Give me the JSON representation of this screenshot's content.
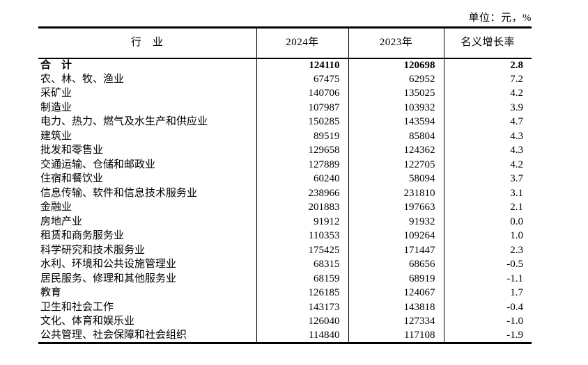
{
  "chart_data": {
    "type": "table",
    "unit_label": "单位：元，%",
    "columns": [
      "行　业",
      "2024年",
      "2023年",
      "名义增长率"
    ],
    "column_keys": [
      "industry",
      "v2024",
      "v2023",
      "growth"
    ],
    "rows": [
      {
        "industry": "合　计",
        "v2024": "124110",
        "v2023": "120698",
        "growth": "2.8",
        "bold": true
      },
      {
        "industry": "农、林、牧、渔业",
        "v2024": "67475",
        "v2023": "62952",
        "growth": "7.2"
      },
      {
        "industry": "采矿业",
        "v2024": "140706",
        "v2023": "135025",
        "growth": "4.2"
      },
      {
        "industry": "制造业",
        "v2024": "107987",
        "v2023": "103932",
        "growth": "3.9"
      },
      {
        "industry": "电力、热力、燃气及水生产和供应业",
        "v2024": "150285",
        "v2023": "143594",
        "growth": "4.7"
      },
      {
        "industry": "建筑业",
        "v2024": "89519",
        "v2023": "85804",
        "growth": "4.3"
      },
      {
        "industry": "批发和零售业",
        "v2024": "129658",
        "v2023": "124362",
        "growth": "4.3"
      },
      {
        "industry": "交通运输、仓储和邮政业",
        "v2024": "127889",
        "v2023": "122705",
        "growth": "4.2"
      },
      {
        "industry": "住宿和餐饮业",
        "v2024": "60240",
        "v2023": "58094",
        "growth": "3.7"
      },
      {
        "industry": "信息传输、软件和信息技术服务业",
        "v2024": "238966",
        "v2023": "231810",
        "growth": "3.1"
      },
      {
        "industry": "金融业",
        "v2024": "201883",
        "v2023": "197663",
        "growth": "2.1"
      },
      {
        "industry": "房地产业",
        "v2024": "91912",
        "v2023": "91932",
        "growth": "0.0"
      },
      {
        "industry": "租赁和商务服务业",
        "v2024": "110353",
        "v2023": "109264",
        "growth": "1.0"
      },
      {
        "industry": "科学研究和技术服务业",
        "v2024": "175425",
        "v2023": "171447",
        "growth": "2.3"
      },
      {
        "industry": "水利、环境和公共设施管理业",
        "v2024": "68315",
        "v2023": "68656",
        "growth": "-0.5"
      },
      {
        "industry": "居民服务、修理和其他服务业",
        "v2024": "68159",
        "v2023": "68919",
        "growth": "-1.1"
      },
      {
        "industry": "教育",
        "v2024": "126185",
        "v2023": "124067",
        "growth": "1.7"
      },
      {
        "industry": "卫生和社会工作",
        "v2024": "143173",
        "v2023": "143818",
        "growth": "-0.4"
      },
      {
        "industry": "文化、体育和娱乐业",
        "v2024": "126040",
        "v2023": "127334",
        "growth": "-1.0"
      },
      {
        "industry": "公共管理、社会保障和社会组织",
        "v2024": "114840",
        "v2023": "117108",
        "growth": "-1.9"
      }
    ]
  }
}
